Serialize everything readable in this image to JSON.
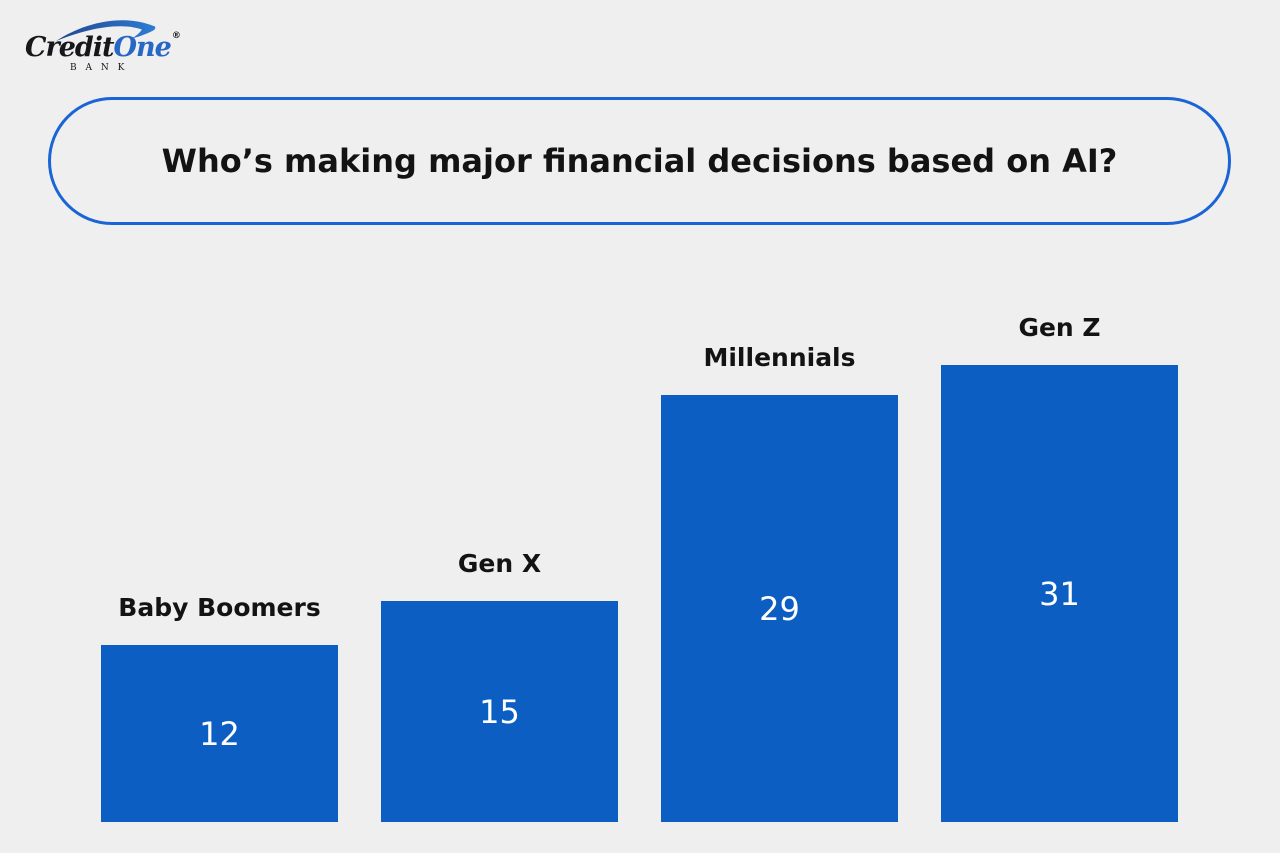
{
  "brand": {
    "credit": "Credit",
    "one": "One",
    "registered": "®",
    "bank": "B A N K"
  },
  "title": "Who’s making major financial decisions based on AI?",
  "colors": {
    "background": "#EFEFEF",
    "bar_blue": "#0D5EC2",
    "pill_border": "#1A64D6",
    "text_dark": "#131313",
    "value_text": "#FFFFFF",
    "logo_blue": "#2767C5"
  },
  "chart_data": {
    "type": "bar",
    "title": "Who’s making major financial decisions based on AI?",
    "categories": [
      "Baby Boomers",
      "Gen X",
      "Millennials",
      "Gen Z"
    ],
    "values": [
      12,
      15,
      29,
      31
    ],
    "ylim": [
      0,
      31
    ],
    "xlabel": "",
    "ylabel": "",
    "grid": false,
    "legend": false,
    "bar_color": "#0D5EC2",
    "label_position": "above-bar",
    "value_position": "center-of-bar"
  }
}
